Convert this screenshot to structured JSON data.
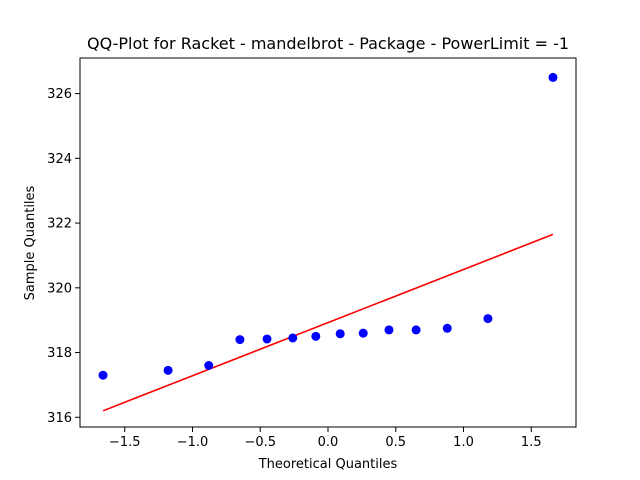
{
  "chart_data": {
    "type": "scatter",
    "title": "QQ-Plot for Racket - mandelbrot - Package - PowerLimit = -1",
    "xlabel": "Theoretical Quantiles",
    "ylabel": "Sample Quantiles",
    "xlim": [
      -1.83,
      1.83
    ],
    "ylim": [
      315.7,
      327.1
    ],
    "xticks": [
      -1.5,
      -1.0,
      -0.5,
      0.0,
      0.5,
      1.0,
      1.5
    ],
    "xtick_labels": [
      "−1.5",
      "−1.0",
      "−0.5",
      "0.0",
      "0.5",
      "1.0",
      "1.5"
    ],
    "yticks": [
      316,
      318,
      320,
      322,
      324,
      326
    ],
    "ytick_labels": [
      "316",
      "318",
      "320",
      "322",
      "324",
      "326"
    ],
    "grid": false,
    "series": [
      {
        "kind": "points",
        "color": "#0000ff",
        "x": [
          -1.66,
          -1.18,
          -0.88,
          -0.65,
          -0.45,
          -0.26,
          -0.09,
          0.09,
          0.26,
          0.45,
          0.65,
          0.88,
          1.18,
          1.66
        ],
        "y": [
          317.3,
          317.45,
          317.6,
          318.4,
          318.42,
          318.45,
          318.5,
          318.58,
          318.6,
          318.7,
          318.7,
          318.75,
          319.05,
          326.5
        ]
      },
      {
        "kind": "line",
        "color": "#ff0000",
        "x": [
          -1.66,
          1.66
        ],
        "y": [
          316.2,
          321.65
        ]
      }
    ]
  }
}
